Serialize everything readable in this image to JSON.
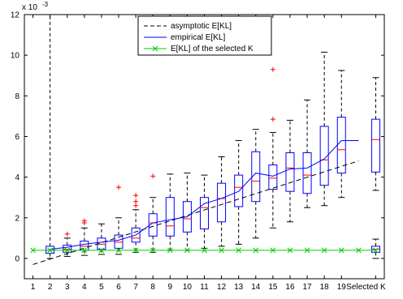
{
  "chart_data": {
    "type": "box",
    "title": "",
    "xlabel": "",
    "ylabel": "",
    "y_exponent_label": "x 10",
    "y_exponent_power": "-3",
    "xlim": [
      0.5,
      21.5
    ],
    "ylim": [
      -1,
      12
    ],
    "x_tick_labels": [
      "1",
      "2",
      "3",
      "4",
      "5",
      "6",
      "7",
      "8",
      "9",
      "10",
      "11",
      "12",
      "13",
      "14",
      "15",
      "16",
      "17",
      "18",
      "19",
      "Selected K"
    ],
    "y_ticks": [
      0,
      2,
      4,
      6,
      8,
      10,
      12
    ],
    "grid": false,
    "legend_position": "top-center",
    "legend": [
      {
        "label": "asymptotic E[KL]",
        "color": "#000000",
        "style": "dashed"
      },
      {
        "label": "empirical E[KL]",
        "color": "#0000ff",
        "style": "solid"
      },
      {
        "label": "E[KL] of the selected K",
        "color": "#00cc00",
        "style": "solid-x"
      }
    ],
    "boxes": [
      {
        "x": 2,
        "whisker_low": 0.0,
        "q1": 0.25,
        "median": 0.4,
        "q3": 0.6,
        "whisker_high": 12.0,
        "outliers": []
      },
      {
        "x": 3,
        "whisker_low": 0.1,
        "q1": 0.3,
        "median": 0.45,
        "q3": 0.65,
        "whisker_high": 1.0,
        "outliers": [
          1.2
        ]
      },
      {
        "x": 4,
        "whisker_low": 0.15,
        "q1": 0.4,
        "median": 0.6,
        "q3": 0.85,
        "whisker_high": 1.5,
        "outliers": [
          1.75,
          1.85
        ]
      },
      {
        "x": 5,
        "whisker_low": 0.2,
        "q1": 0.45,
        "median": 0.7,
        "q3": 1.0,
        "whisker_high": 1.7,
        "outliers": []
      },
      {
        "x": 6,
        "whisker_low": 0.2,
        "q1": 0.5,
        "median": 0.8,
        "q3": 1.15,
        "whisker_high": 2.0,
        "outliers": [
          3.5
        ]
      },
      {
        "x": 7,
        "whisker_low": 0.3,
        "q1": 0.8,
        "median": 1.0,
        "q3": 1.5,
        "whisker_high": 2.4,
        "outliers": [
          2.6,
          2.8,
          3.1
        ]
      },
      {
        "x": 8,
        "whisker_low": 0.3,
        "q1": 1.1,
        "median": 1.75,
        "q3": 2.2,
        "whisker_high": 3.0,
        "outliers": [
          4.05
        ]
      },
      {
        "x": 9,
        "whisker_low": 0.4,
        "q1": 1.1,
        "median": 1.6,
        "q3": 3.0,
        "whisker_high": 4.15,
        "outliers": []
      },
      {
        "x": 10,
        "whisker_low": 0.4,
        "q1": 1.3,
        "median": 1.95,
        "q3": 2.8,
        "whisker_high": 4.2,
        "outliers": []
      },
      {
        "x": 11,
        "whisker_low": 0.5,
        "q1": 1.45,
        "median": 2.5,
        "q3": 3.0,
        "whisker_high": 4.1,
        "outliers": []
      },
      {
        "x": 12,
        "whisker_low": 0.6,
        "q1": 1.8,
        "median": 2.95,
        "q3": 3.7,
        "whisker_high": 5.0,
        "outliers": []
      },
      {
        "x": 13,
        "whisker_low": 0.7,
        "q1": 2.55,
        "median": 3.5,
        "q3": 4.1,
        "whisker_high": 5.8,
        "outliers": []
      },
      {
        "x": 14,
        "whisker_low": 1.0,
        "q1": 2.8,
        "median": 3.8,
        "q3": 5.25,
        "whisker_high": 6.35,
        "outliers": []
      },
      {
        "x": 15,
        "whisker_low": 1.5,
        "q1": 3.4,
        "median": 3.95,
        "q3": 4.6,
        "whisker_high": 6.2,
        "outliers": [
          6.85,
          9.3
        ]
      },
      {
        "x": 16,
        "whisker_low": 1.8,
        "q1": 3.3,
        "median": 4.45,
        "q3": 5.2,
        "whisker_high": 6.8,
        "outliers": []
      },
      {
        "x": 17,
        "whisker_low": 2.5,
        "q1": 3.2,
        "median": 4.1,
        "q3": 5.2,
        "whisker_high": 7.8,
        "outliers": []
      },
      {
        "x": 18,
        "whisker_low": 2.6,
        "q1": 3.6,
        "median": 4.85,
        "q3": 6.5,
        "whisker_high": 10.15,
        "outliers": []
      },
      {
        "x": 19,
        "whisker_low": 3.0,
        "q1": 4.2,
        "median": 5.35,
        "q3": 6.95,
        "whisker_high": 9.25,
        "outliers": []
      },
      {
        "x": 21,
        "whisker_low": 3.35,
        "q1": 4.25,
        "median": 5.85,
        "q3": 6.85,
        "whisker_high": 8.9,
        "outliers": []
      },
      {
        "x": 21,
        "whisker_low": 0.0,
        "q1": 0.3,
        "median": 0.45,
        "q3": 0.6,
        "whisker_high": 0.95,
        "outliers": []
      }
    ],
    "series": [
      {
        "name": "asymptotic E[KL]",
        "x": [
          1,
          20
        ],
        "y": [
          -0.3,
          4.8
        ]
      },
      {
        "name": "empirical E[KL]",
        "x": [
          2,
          3,
          4,
          5,
          6,
          7,
          8,
          9,
          10,
          11,
          12,
          13,
          14,
          15,
          16,
          17,
          18,
          19,
          20
        ],
        "y": [
          0.45,
          0.55,
          0.7,
          0.8,
          0.9,
          1.15,
          1.75,
          1.9,
          2.05,
          2.7,
          2.95,
          3.3,
          4.2,
          4.05,
          4.4,
          4.45,
          4.9,
          5.8,
          5.8
        ]
      },
      {
        "name": "E[KL] of the selected K",
        "x": [
          1,
          2,
          3,
          4,
          5,
          6,
          7,
          8,
          9,
          10,
          11,
          12,
          13,
          14,
          15,
          16,
          17,
          18,
          19,
          20,
          21
        ],
        "y": [
          0.4,
          0.4,
          0.4,
          0.4,
          0.4,
          0.4,
          0.4,
          0.4,
          0.4,
          0.4,
          0.4,
          0.4,
          0.4,
          0.4,
          0.4,
          0.4,
          0.4,
          0.4,
          0.4,
          0.4,
          0.4
        ]
      }
    ],
    "colors": {
      "box": "#0000ff",
      "median": "#ff0000",
      "whisker": "#000000",
      "outlier": "#ff0000",
      "asymptotic": "#000000",
      "empirical": "#0000ff",
      "selected": "#00cc00"
    }
  }
}
